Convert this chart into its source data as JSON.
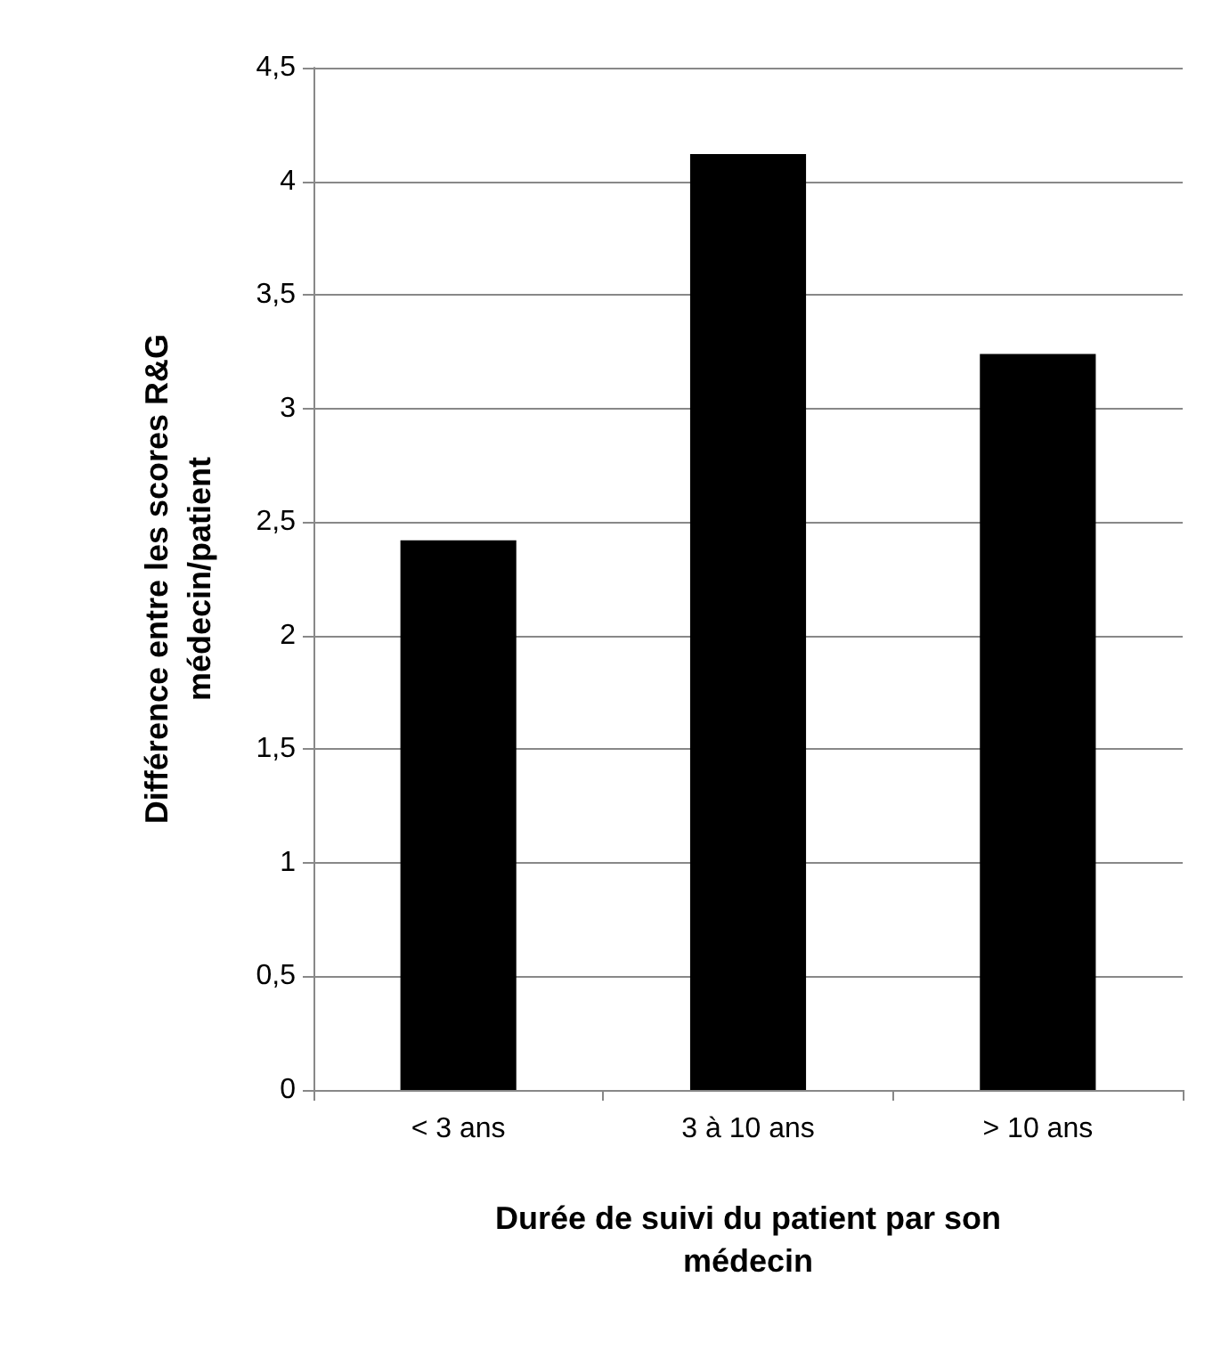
{
  "chart_data": {
    "type": "bar",
    "xlabel": "Durée de suivi du patient par son\nmédecin",
    "ylabel": "Différence entre les scores R&G\nmédecin/patient",
    "categories": [
      "< 3 ans",
      "3 à 10 ans",
      "> 10 ans"
    ],
    "values": [
      2.42,
      4.12,
      3.24
    ],
    "color": "#000000",
    "ylim": [
      0,
      4.5
    ],
    "yticks": [
      0,
      {
        "value": 0.5,
        "label": "0,5"
      },
      1,
      {
        "value": 1.5,
        "label": "1,5"
      },
      2,
      {
        "value": 2.5,
        "label": "2,5"
      },
      3,
      {
        "value": 3.5,
        "label": "3,5"
      },
      4,
      {
        "value": 4.5,
        "label": "4,5"
      }
    ],
    "grid": "y"
  }
}
